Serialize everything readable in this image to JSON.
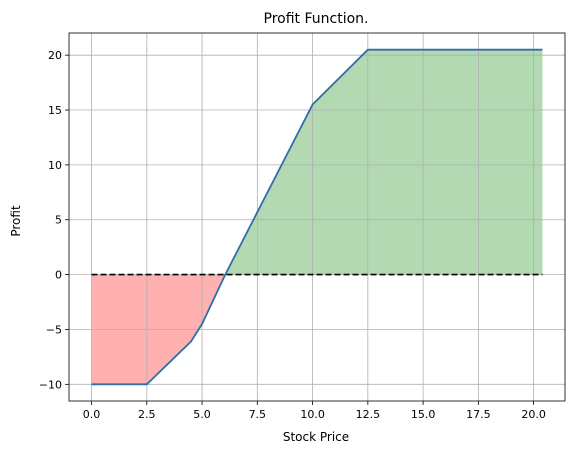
{
  "chart_data": {
    "type": "line",
    "title": "Profit Function.",
    "xlabel": "Stock Price",
    "ylabel": "Profit",
    "xlim": [
      -1.02,
      21.42
    ],
    "ylim": [
      -11.52,
      22.02
    ],
    "xticks": [
      0,
      2.5,
      5,
      7.5,
      10,
      12.5,
      15,
      17.5,
      20
    ],
    "xtick_labels": [
      "0.0",
      "2.5",
      "5.0",
      "7.5",
      "10.0",
      "12.5",
      "15.0",
      "17.5",
      "20.0"
    ],
    "yticks": [
      -10,
      -5,
      0,
      5,
      10,
      15,
      20
    ],
    "ytick_labels": [
      "−10",
      "−5",
      "0",
      "5",
      "10",
      "15",
      "20"
    ],
    "grid": true,
    "reference_line": {
      "y": 0,
      "style": "dashed",
      "color": "#000000"
    },
    "series": [
      {
        "line_color": "#2f6fa8",
        "x": [
          0,
          2.5,
          4.5,
          5.0,
          6.05,
          10.0,
          12.5,
          20.4
        ],
        "y": [
          -10,
          -10,
          -6.1,
          -4.5,
          0,
          15.5,
          20.5,
          20.5
        ]
      }
    ],
    "fill": {
      "positive_color": "#b3d9b3",
      "negative_color": "#ffb0b0"
    }
  }
}
